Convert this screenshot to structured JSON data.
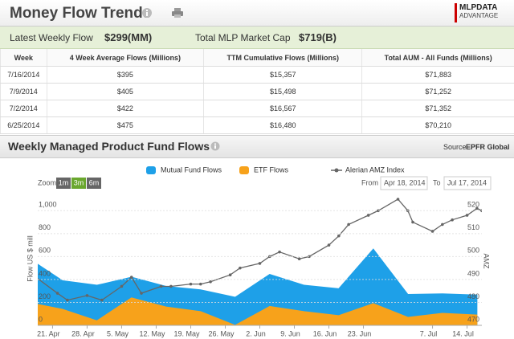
{
  "header": {
    "title": "Money Flow Trends",
    "logo": [
      "MLPDATA",
      "ADVANTAGE"
    ]
  },
  "summary": {
    "latest_label": "Latest Weekly Flow",
    "latest_value": "$299(MM)",
    "cap_label": "Total MLP Market Cap",
    "cap_value": "$719(B)"
  },
  "table": {
    "columns": [
      "Week",
      "4 Week Average Flows (Millions)",
      "TTM Cumulative Flows (Millions)",
      "Total AUM - All Funds (Millions)"
    ],
    "rows": [
      [
        "7/16/2014",
        "$395",
        "$15,357",
        "$71,883"
      ],
      [
        "7/9/2014",
        "$405",
        "$15,498",
        "$71,252"
      ],
      [
        "7/2/2014",
        "$422",
        "$16,567",
        "$71,352"
      ],
      [
        "6/25/2014",
        "$475",
        "$16,480",
        "$70,210"
      ]
    ]
  },
  "section": {
    "title": "Weekly Managed Product Fund Flows",
    "source_label": "Source",
    "source": "EPFR Global"
  },
  "chart_data": {
    "type": "area",
    "zoom_label": "Zoom",
    "zoom_buttons": [
      "1m",
      "3m",
      "6m"
    ],
    "zoom_active": "3m",
    "range_from_label": "From",
    "range_from": "Apr 18, 2014",
    "range_to_label": "To",
    "range_to": "Jul 17, 2014",
    "ylabel": "Flow US $ mill",
    "y2label": "AMZ",
    "xlim": [
      "2014-04-18",
      "2014-07-17"
    ],
    "xticks": [
      {
        "value": "2014-04-21",
        "label": "21. Apr"
      },
      {
        "value": "2014-04-28",
        "label": "28. Apr"
      },
      {
        "value": "2014-05-05",
        "label": "5. May"
      },
      {
        "value": "2014-05-12",
        "label": "12. May"
      },
      {
        "value": "2014-05-19",
        "label": "19. May"
      },
      {
        "value": "2014-05-26",
        "label": "26. May"
      },
      {
        "value": "2014-06-02",
        "label": "2. Jun"
      },
      {
        "value": "2014-06-09",
        "label": "9. Jun"
      },
      {
        "value": "2014-06-16",
        "label": "16. Jun"
      },
      {
        "value": "2014-06-23",
        "label": "23. Jun"
      },
      {
        "value": "2014-07-07",
        "label": "7. Jul"
      },
      {
        "value": "2014-07-14",
        "label": "14. Jul"
      }
    ],
    "ylim": [
      0,
      1100
    ],
    "yticks": [
      0,
      200,
      400,
      600,
      800,
      {
        "value": 1000,
        "label": "1,000"
      }
    ],
    "y2lim": [
      470,
      525
    ],
    "y2ticks": [
      470,
      480,
      490,
      500,
      510,
      520
    ],
    "grid": true,
    "series": [
      {
        "name": "Mutual Fund Flows",
        "type": "area",
        "color": "#1ea0e8",
        "x": [
          "2014-04-16",
          "2014-04-23",
          "2014-04-30",
          "2014-05-07",
          "2014-05-14",
          "2014-05-21",
          "2014-05-28",
          "2014-06-04",
          "2014-06-11",
          "2014-06-18",
          "2014-06-25",
          "2014-07-02",
          "2014-07-09",
          "2014-07-16"
        ],
        "values": [
          590,
          390,
          350,
          420,
          340,
          310,
          245,
          445,
          350,
          320,
          665,
          270,
          275,
          265
        ]
      },
      {
        "name": "ETF Flows",
        "type": "area",
        "color": "#f7a21b",
        "x": [
          "2014-04-16",
          "2014-04-23",
          "2014-04-30",
          "2014-05-07",
          "2014-05-14",
          "2014-05-21",
          "2014-05-28",
          "2014-06-04",
          "2014-06-11",
          "2014-06-18",
          "2014-06-25",
          "2014-07-02",
          "2014-07-09",
          "2014-07-16"
        ],
        "values": [
          200,
          140,
          40,
          240,
          160,
          120,
          0,
          165,
          120,
          85,
          190,
          70,
          105,
          90
        ]
      },
      {
        "name": "Alerian AMZ Index",
        "type": "line",
        "axis": "y2",
        "color": "#666666",
        "x": [
          "2014-04-17",
          "2014-04-22",
          "2014-04-24",
          "2014-04-28",
          "2014-05-01",
          "2014-05-05",
          "2014-05-07",
          "2014-05-09",
          "2014-05-13",
          "2014-05-15",
          "2014-05-19",
          "2014-05-21",
          "2014-05-23",
          "2014-05-27",
          "2014-05-29",
          "2014-06-02",
          "2014-06-04",
          "2014-06-06",
          "2014-06-10",
          "2014-06-12",
          "2014-06-16",
          "2014-06-18",
          "2014-06-20",
          "2014-06-24",
          "2014-06-26",
          "2014-06-30",
          "2014-07-02",
          "2014-07-03",
          "2014-07-07",
          "2014-07-09",
          "2014-07-11",
          "2014-07-14",
          "2014-07-16",
          "2014-07-17"
        ],
        "values": [
          492,
          484,
          481,
          483,
          481,
          487,
          491,
          484,
          487,
          487,
          488,
          488,
          489,
          492,
          495,
          497,
          500,
          502,
          499,
          500,
          505,
          509,
          514,
          518,
          520,
          525,
          520,
          515,
          511,
          514,
          516,
          518,
          521,
          520
        ]
      }
    ]
  }
}
